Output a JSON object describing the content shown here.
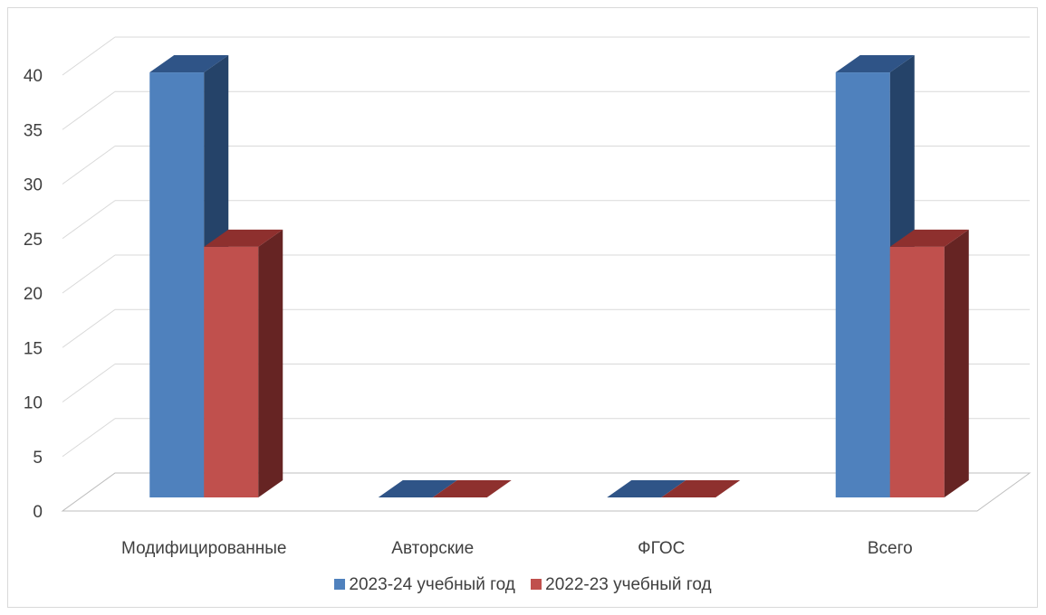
{
  "chart_data": {
    "type": "bar",
    "categories": [
      "Модифицированные",
      "Авторские",
      "ФГОС",
      "Всего"
    ],
    "series": [
      {
        "name": "2023-24 учебный год",
        "values": [
          39,
          0,
          0,
          39
        ],
        "color": "#4f81bd",
        "side_color": "#254369",
        "top_color": "#2f5487"
      },
      {
        "name": "2022-23 учебный год",
        "values": [
          23,
          0,
          0,
          23
        ],
        "color": "#c0504d",
        "side_color": "#662423",
        "top_color": "#8e302e"
      }
    ],
    "ylim": [
      0,
      40
    ],
    "yticks": [
      0,
      5,
      10,
      15,
      20,
      25,
      30,
      35,
      40
    ],
    "grid": true,
    "legend_position": "bottom",
    "title": "",
    "xlabel": "",
    "ylabel": ""
  }
}
